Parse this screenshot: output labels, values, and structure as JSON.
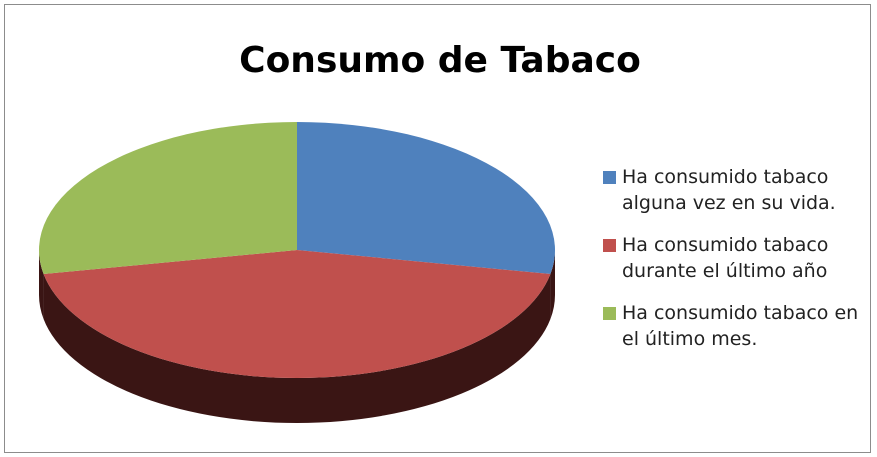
{
  "chart_data": {
    "type": "pie3d",
    "title": "Consumo de Tabaco",
    "categories": [
      "Ha consumido tabaco alguna vez en su vida.",
      "Ha consumido tabaco durante el último año",
      "Ha consumido tabaco en el último mes."
    ],
    "values": [
      28,
      44,
      28
    ],
    "colors": [
      "#4f81bd",
      "#c0504d",
      "#9bbb59"
    ],
    "legend": "right"
  }
}
